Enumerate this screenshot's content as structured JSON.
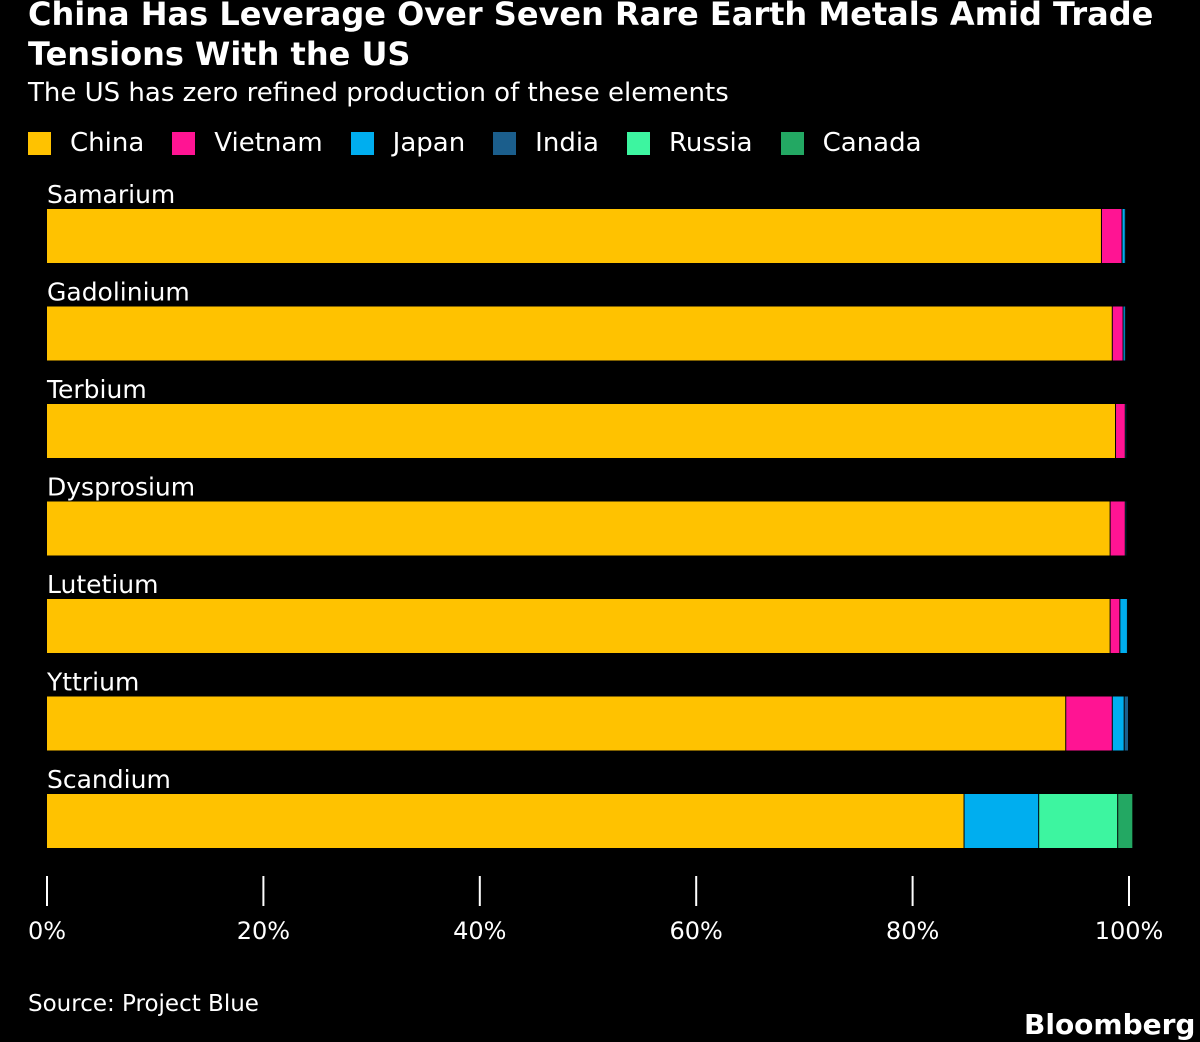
{
  "header": {
    "title": "China Has Leverage Over Seven Rare Earth Metals Amid Trade Tensions With the US",
    "subtitle": "The US has zero refined production of these elements"
  },
  "footer": {
    "source": "Source: Project Blue",
    "logo": "Bloomberg"
  },
  "colors": {
    "background": "#000000",
    "China": "#FFC200",
    "Vietnam": "#FF1493",
    "Japan": "#00AEEF",
    "India": "#1B5E8C",
    "Russia": "#3DF5A0",
    "Canada": "#23A863"
  },
  "chart_data": {
    "type": "bar",
    "orientation": "horizontal",
    "stacked": true,
    "title": "China Has Leverage Over Seven Rare Earth Metals Amid Trade Tensions With the US",
    "subtitle": "The US has zero refined production of these elements",
    "categories": [
      "Samarium",
      "Gadolinium",
      "Terbium",
      "Dysprosium",
      "Lutetium",
      "Yttrium",
      "Scandium"
    ],
    "series": [
      {
        "name": "China",
        "values": [
          97.5,
          98.5,
          98.8,
          98.3,
          98.3,
          94.2,
          84.8
        ]
      },
      {
        "name": "Vietnam",
        "values": [
          1.9,
          1.0,
          0.9,
          1.4,
          0.9,
          4.3,
          0.0
        ]
      },
      {
        "name": "Japan",
        "values": [
          0.3,
          0.2,
          0.1,
          0.1,
          0.7,
          1.1,
          6.9
        ]
      },
      {
        "name": "India",
        "values": [
          0.1,
          0.1,
          0.1,
          0.1,
          0.1,
          0.4,
          0.0
        ]
      },
      {
        "name": "Russia",
        "values": [
          0.0,
          0.0,
          0.0,
          0.0,
          0.0,
          0.0,
          7.3
        ]
      },
      {
        "name": "Canada",
        "values": [
          0.0,
          0.0,
          0.0,
          0.0,
          0.0,
          0.0,
          1.4
        ]
      }
    ],
    "xlim": [
      0,
      100
    ],
    "x_ticks": [
      0,
      20,
      40,
      60,
      80,
      100
    ],
    "x_tick_labels": [
      "0%",
      "20%",
      "40%",
      "60%",
      "80%",
      "100%"
    ],
    "xlabel": "",
    "ylabel": "",
    "grid": false,
    "legend_position": "top-left"
  }
}
